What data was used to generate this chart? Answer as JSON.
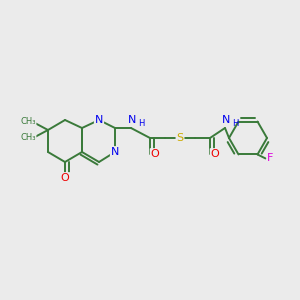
{
  "bg_color": "#ebebeb",
  "atom_colors": {
    "C": "#3a7a3a",
    "N": "#0000ee",
    "O": "#ee0000",
    "S": "#ccaa00",
    "F": "#dd00dd",
    "H": "#3a7a3a"
  },
  "bond_color": "#3a7a3a",
  "bond_lw": 1.4,
  "figsize": [
    3.0,
    3.0
  ],
  "dpi": 100
}
